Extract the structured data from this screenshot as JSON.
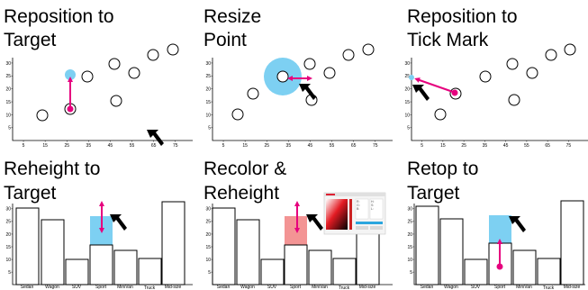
{
  "panels": [
    {
      "id": "reposition-target",
      "title_lines": [
        "Reposition to",
        "Target"
      ]
    },
    {
      "id": "resize-point",
      "title_lines": [
        "Resize",
        "Point"
      ]
    },
    {
      "id": "reposition-tick",
      "title_lines": [
        "Reposition to",
        "Tick Mark"
      ]
    },
    {
      "id": "reheight-target",
      "title_lines": [
        "Reheight to",
        "Target"
      ]
    },
    {
      "id": "recolor-reheight",
      "title_lines": [
        "Recolor &",
        "Reheight"
      ]
    },
    {
      "id": "retop-target",
      "title_lines": [
        "Retop to",
        "Target"
      ]
    }
  ],
  "scatter": {
    "x_ticks": [
      "5",
      "15",
      "25",
      "35",
      "45",
      "55",
      "65",
      "75"
    ],
    "y_ticks": [
      "5",
      "10",
      "15",
      "20",
      "25",
      "30"
    ]
  },
  "bars": {
    "y_ticks": [
      "5",
      "10",
      "15",
      "20",
      "25",
      "30"
    ],
    "categories": [
      "Sedan",
      "Wagon",
      "SUV",
      "Sport",
      "MiniVan",
      "Truck",
      "Mid-size"
    ]
  },
  "colors": {
    "magenta": "#e6007e",
    "blue": "#7dd0f2",
    "red": "#f39494",
    "cursor": "#000000"
  },
  "picker": {
    "label_lines": [
      "R:",
      "G:",
      "B:",
      "H:",
      "S:",
      "L:"
    ]
  }
}
